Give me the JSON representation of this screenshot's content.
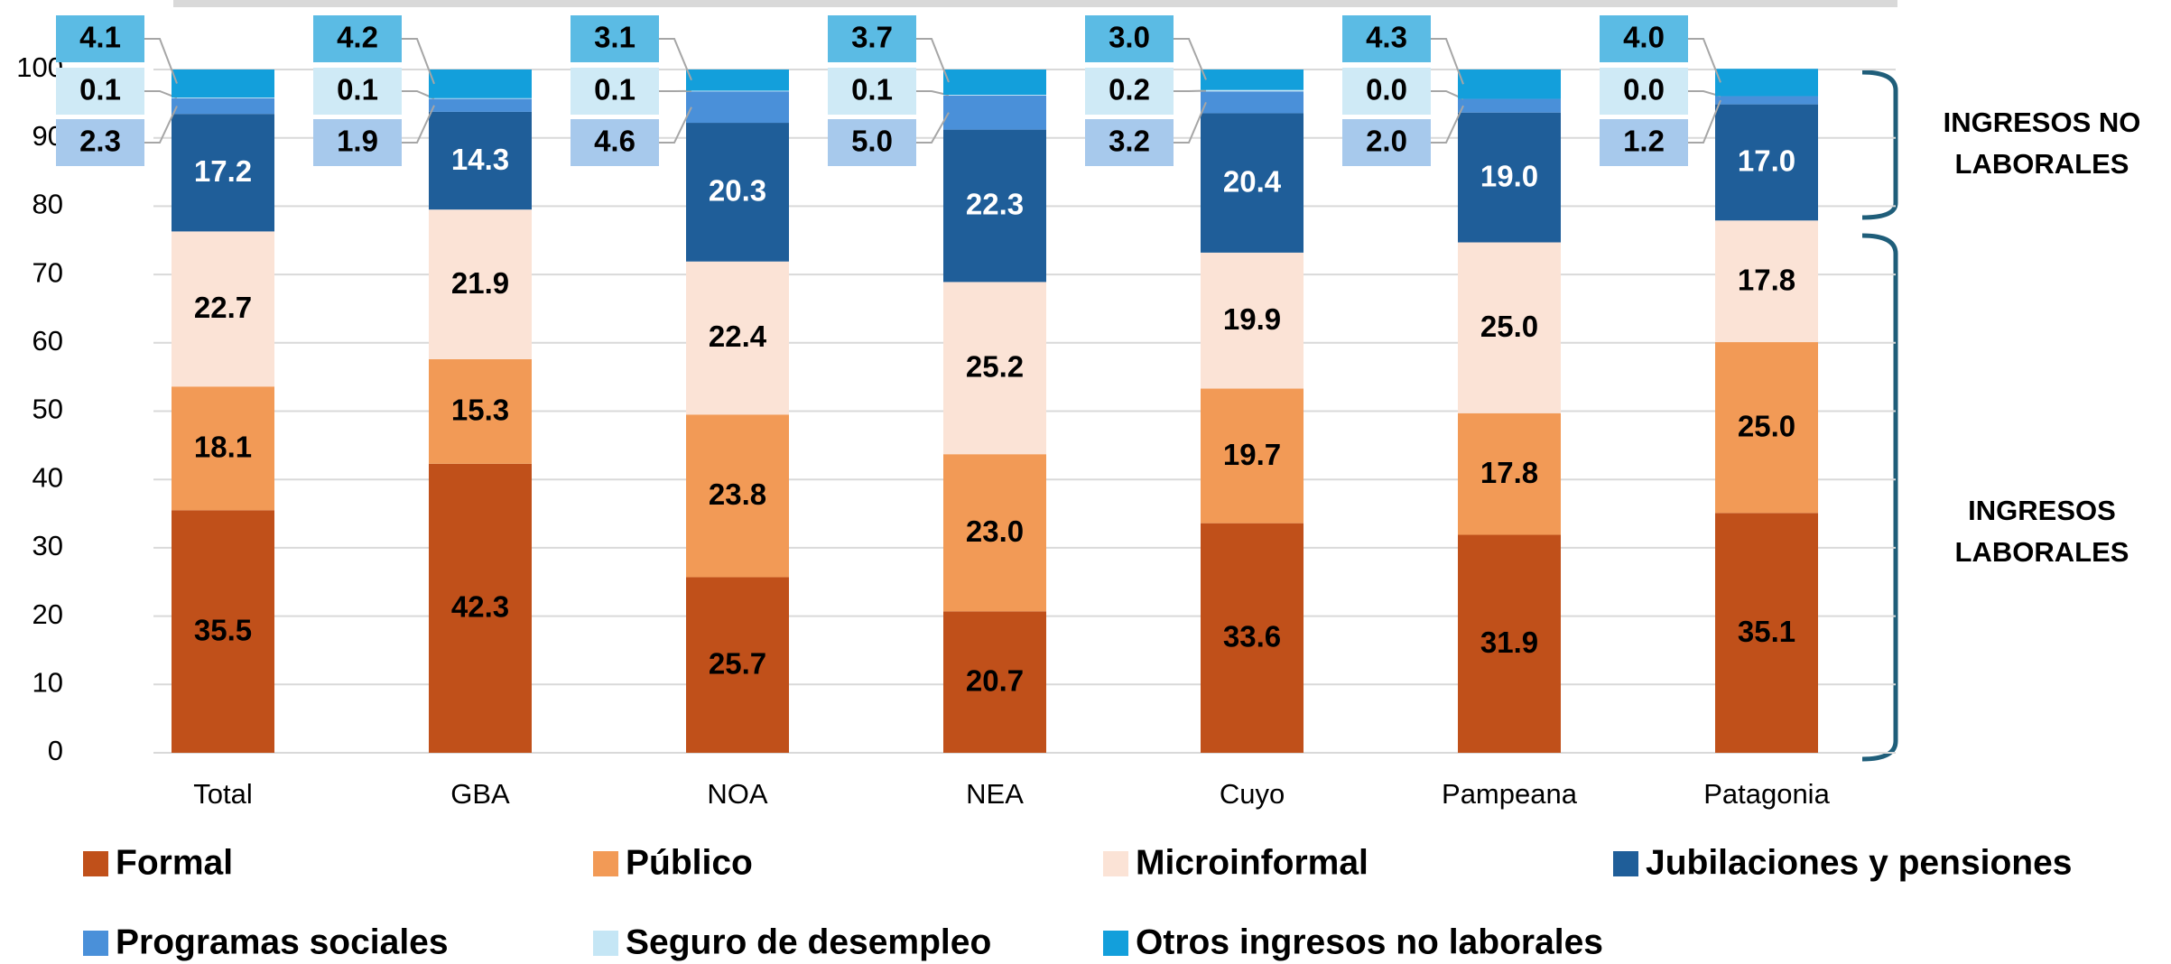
{
  "chart_data": {
    "type": "stacked_bar",
    "categories": [
      "Total",
      "GBA",
      "NOA",
      "NEA",
      "Cuyo",
      "Pampeana",
      "Patagonia"
    ],
    "ylim": [
      0,
      100
    ],
    "yticks": [
      0,
      10,
      20,
      30,
      40,
      50,
      60,
      70,
      80,
      90,
      100
    ],
    "grid": true,
    "legend": "bottom",
    "series": [
      {
        "name": "Formal",
        "color": "#c0501a",
        "label_color": "#000",
        "values": [
          35.5,
          42.3,
          25.7,
          20.7,
          33.6,
          31.9,
          35.1
        ]
      },
      {
        "name": "Público",
        "color": "#f29a56",
        "label_color": "#000",
        "values": [
          18.1,
          15.3,
          23.8,
          23.0,
          19.7,
          17.8,
          25.0
        ],
        "value_labels": [
          "18.1",
          "15.3",
          "23.8",
          "23.0",
          "19.7",
          "17.8",
          "25.0"
        ]
      },
      {
        "name": "Microinformal",
        "color": "#fbe3d6",
        "label_color": "#000",
        "values": [
          22.7,
          21.9,
          22.4,
          25.2,
          19.9,
          25.0,
          17.8
        ],
        "value_labels": [
          "22.7",
          "21.9",
          "22.4",
          "25.2",
          "19.9",
          "25.0",
          "17.8"
        ]
      },
      {
        "name": "Jubilaciones y pensiones",
        "color": "#1f5e99",
        "label_color": "#fff",
        "values": [
          17.2,
          14.3,
          20.3,
          22.3,
          20.4,
          19.0,
          17.0
        ],
        "value_labels": [
          "17.2",
          "14.3",
          "20.3",
          "22.3",
          "20.4",
          "19.0",
          "17.0"
        ]
      },
      {
        "name": "Programas sociales",
        "color": "#4a90d9",
        "callout_color": "#a7c9ec",
        "values": [
          2.3,
          1.9,
          4.6,
          5.0,
          3.2,
          2.0,
          1.2
        ],
        "value_labels": [
          "2.3",
          "1.9",
          "4.6",
          "5.0",
          "3.2",
          "2.0",
          "1.2"
        ]
      },
      {
        "name": "Seguro de desempleo",
        "color": "#c5e6f5",
        "callout_color": "#cfeaf6",
        "values": [
          0.1,
          0.1,
          0.1,
          0.1,
          0.2,
          0.0,
          0.0
        ],
        "value_labels": [
          "0.1",
          "0.1",
          "0.1",
          "0.1",
          "0.2",
          "0.0",
          "0.0"
        ]
      },
      {
        "name": "Otros ingresos no laborales",
        "color": "#139fdb",
        "callout_color": "#5bbbe4",
        "values": [
          4.1,
          4.2,
          3.1,
          3.7,
          3.0,
          4.3,
          4.0
        ],
        "value_labels": [
          "4.1",
          "4.2",
          "3.1",
          "3.7",
          "3.0",
          "4.3",
          "4.0"
        ]
      }
    ],
    "annotations": [
      "INGRESOS NO LABORALES",
      "INGRESOS LABORALES"
    ]
  }
}
